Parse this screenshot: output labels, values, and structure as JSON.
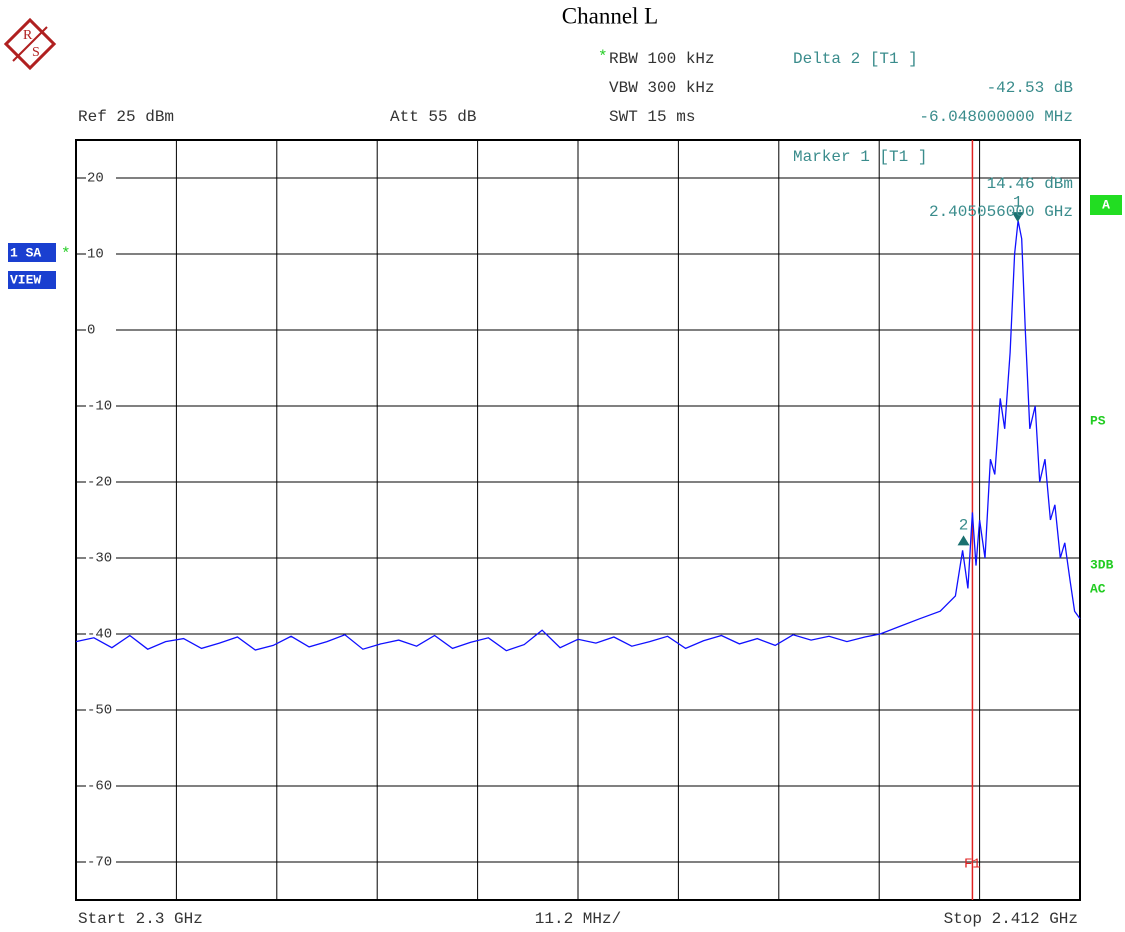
{
  "chart_data": {
    "type": "line",
    "title": "Channel L",
    "header": {
      "star": "*",
      "rbw": "RBW 100 kHz",
      "vbw": "VBW 300 kHz",
      "swt": "SWT 15 ms",
      "ref": "Ref 25 dBm",
      "att": "Att 55 dB",
      "delta": "Delta 2 [T1 ]",
      "delta_level": "-42.53 dB",
      "delta_freq": "-6.048000000 MHz",
      "marker": "Marker 1 [T1 ]",
      "marker_level": "14.46 dBm",
      "marker_freq": "2.405056000 GHz"
    },
    "side": {
      "trace": "1 SA",
      "trace_star": "*",
      "view": "VIEW",
      "a": "A",
      "ps": "PS",
      "db3": "3DB",
      "ac": "AC"
    },
    "footer": {
      "start": "Start 2.3 GHz",
      "span": "11.2 MHz/",
      "stop": "Stop 2.412 GHz"
    },
    "logo": {
      "top": "R",
      "bottom": "S"
    },
    "xlim": [
      2.3,
      2.412
    ],
    "xticks": [
      2.3,
      2.3112,
      2.3224,
      2.3336,
      2.3448,
      2.356,
      2.3672,
      2.3784,
      2.3896,
      2.4008,
      2.412
    ],
    "ylim": [
      -75,
      25
    ],
    "yticks": [
      20,
      10,
      0,
      -10,
      -20,
      -30,
      -40,
      -50,
      -60,
      -70
    ],
    "grid": true,
    "color": "#1010ff",
    "x": [
      2.3,
      2.302,
      2.304,
      2.306,
      2.308,
      2.31,
      2.312,
      2.314,
      2.316,
      2.318,
      2.32,
      2.322,
      2.324,
      2.326,
      2.328,
      2.33,
      2.332,
      2.334,
      2.336,
      2.338,
      2.34,
      2.342,
      2.344,
      2.346,
      2.348,
      2.35,
      2.352,
      2.354,
      2.356,
      2.358,
      2.36,
      2.362,
      2.364,
      2.366,
      2.368,
      2.37,
      2.372,
      2.374,
      2.376,
      2.378,
      2.38,
      2.382,
      2.384,
      2.386,
      2.388,
      2.3897,
      2.3919,
      2.3941,
      2.3964,
      2.3981,
      2.3989,
      2.3995,
      2.4,
      2.4004,
      2.4008,
      2.4014,
      2.402,
      2.4025,
      2.4031,
      2.4036,
      2.4042,
      2.4047,
      2.4051,
      2.4055,
      2.4059,
      2.4064,
      2.407,
      2.4075,
      2.4081,
      2.4087,
      2.4092,
      2.4098,
      2.4103,
      2.4109,
      2.4114,
      2.412
    ],
    "values": [
      -41,
      -40.5,
      -41.8,
      -40.2,
      -42,
      -41,
      -40.6,
      -41.9,
      -41.2,
      -40.4,
      -42.1,
      -41.5,
      -40.3,
      -41.7,
      -41,
      -40.1,
      -42,
      -41.3,
      -40.8,
      -41.6,
      -40.2,
      -41.9,
      -41.1,
      -40.5,
      -42.2,
      -41.4,
      -39.5,
      -41.8,
      -40.7,
      -41.2,
      -40.4,
      -41.6,
      -41,
      -40.3,
      -41.9,
      -40.9,
      -40.2,
      -41.3,
      -40.6,
      -41.5,
      -40.1,
      -40.8,
      -40.3,
      -41,
      -40.4,
      -40,
      -39,
      -38,
      -37,
      -35,
      -29,
      -34,
      -24,
      -31,
      -25,
      -30,
      -17,
      -19,
      -9,
      -13,
      -3,
      10,
      14.4,
      12,
      0,
      -13,
      -10,
      -20,
      -17,
      -25,
      -23,
      -30,
      -28,
      -33,
      -37,
      -38
    ],
    "markers": [
      {
        "label": "1",
        "x": 2.405056,
        "y": 14.46
      },
      {
        "label": "2",
        "x": 2.399008,
        "y": -28.07
      }
    ],
    "f1_line": {
      "label": "F1",
      "x": 2.4,
      "color": "#e02020"
    }
  }
}
